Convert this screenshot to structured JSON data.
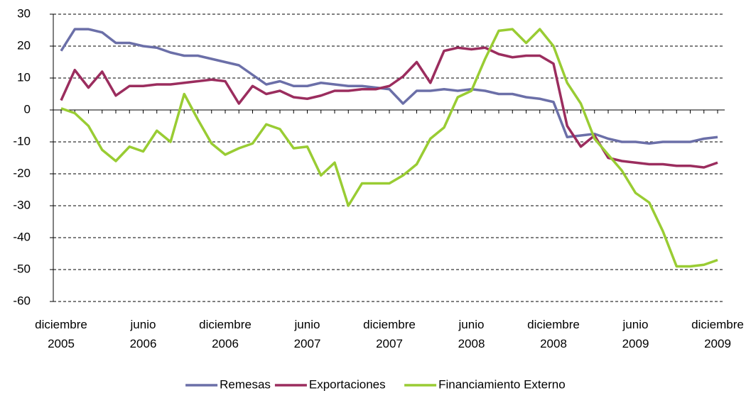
{
  "chart_data": {
    "type": "line",
    "categories": [
      "diciembre\n2005",
      null,
      null,
      null,
      null,
      null,
      "junio\n2006",
      null,
      null,
      null,
      null,
      null,
      "diciembre\n2006",
      null,
      null,
      null,
      null,
      null,
      "junio\n2007",
      null,
      null,
      null,
      null,
      null,
      "diciembre\n2007",
      null,
      null,
      null,
      null,
      null,
      "junio\n2008",
      null,
      null,
      null,
      null,
      null,
      "diciembre\n2008",
      null,
      null,
      null,
      null,
      null,
      "junio\n2009",
      null,
      null,
      null,
      null,
      null,
      "diciembre\n2009"
    ],
    "series": [
      {
        "name": "Remesas",
        "color": "#6b6fa8",
        "values": [
          18.5,
          25.3,
          25.3,
          24.3,
          21,
          21,
          20,
          19.5,
          18,
          17,
          17,
          16,
          15,
          14,
          11,
          8,
          9,
          7.5,
          7.5,
          8.5,
          8,
          7.5,
          7.5,
          7,
          6.5,
          2,
          6,
          6,
          6.5,
          6,
          6.5,
          6,
          5,
          5,
          4,
          3.5,
          2.5,
          -8.5,
          -8,
          -7.5,
          -9,
          -10,
          -10,
          -10.5,
          -10,
          -10,
          -10,
          -9,
          -8.5
        ]
      },
      {
        "name": "Exportaciones",
        "color": "#9b2d5e",
        "values": [
          3,
          12.5,
          7,
          12,
          4.5,
          7.5,
          7.5,
          8,
          8,
          8.5,
          9,
          9.5,
          9,
          2,
          7.5,
          5,
          6,
          4,
          3.5,
          4.5,
          6,
          6,
          6.5,
          6.5,
          7.5,
          10.5,
          15,
          8.5,
          18.5,
          19.5,
          19,
          19.5,
          17.5,
          16.5,
          17,
          17,
          14.5,
          -5,
          -11.5,
          -8,
          -15,
          -16,
          -16.5,
          -17,
          -17,
          -17.5,
          -17.5,
          -18,
          -16.5
        ]
      },
      {
        "name": "Financiamiento Externo",
        "color": "#99cc33",
        "values": [
          0.5,
          -1,
          -5,
          -12.5,
          -16,
          -11.5,
          -13,
          -6.5,
          -10,
          5,
          -3,
          -10.5,
          -14,
          -12,
          -10.5,
          -4.5,
          -6,
          -12,
          -11.5,
          -20.5,
          -16.5,
          -30,
          -23,
          -23,
          -23,
          -20.5,
          -17,
          -9,
          -5.5,
          4,
          6,
          16,
          24.8,
          25.3,
          21,
          25.3,
          20,
          8.5,
          2,
          -9,
          -14,
          -19,
          -26,
          -29,
          -38,
          -49,
          -49,
          -48.5,
          -47
        ]
      }
    ],
    "ylim": [
      -60,
      30
    ],
    "yticks": [
      -60,
      -50,
      -40,
      -30,
      -20,
      -10,
      0,
      10,
      20,
      30
    ],
    "grid": true
  }
}
